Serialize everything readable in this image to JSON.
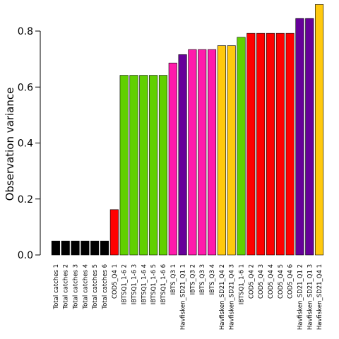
{
  "chart_data": {
    "type": "bar",
    "title": "",
    "xlabel": "",
    "ylabel": "Observation variance",
    "ylim": [
      0,
      0.9
    ],
    "yticks": [
      0.0,
      0.2,
      0.4,
      0.6,
      0.8
    ],
    "ytick_labels": [
      "0.0",
      "0.2",
      "0.4",
      "0.6",
      "0.8"
    ],
    "grid": false,
    "legend": "none",
    "bar_edge_color": "#000000",
    "categories": [
      "Total catches 1",
      "Total catches 2",
      "Total catches 3",
      "Total catches 4",
      "Total catches 5",
      "Total catches 6",
      "COD5_Q4 1",
      "IBTSQ1_1-6 2",
      "IBTSQ1_1-6 3",
      "IBTSQ1_1-6 4",
      "IBTSQ1_1-6 5",
      "IBTSQ1_1-6 6",
      "IBTS_Q3 1",
      "Havfisken_SD21_Q1 1",
      "IBTS_Q3 2",
      "IBTS_Q3 3",
      "IBTS_Q3 4",
      "Havfisken_SD21_Q4 2",
      "Havfisken_SD21_Q4 3",
      "IBTSQ1_1-6 1",
      "COD5_Q4 2",
      "COD5_Q4 3",
      "COD5_Q4 4",
      "COD5_Q4 5",
      "COD5_Q4 6",
      "Havfisken_SD21_Q1 2",
      "Havfisken_SD21_Q1 3",
      "Havfisken_SD21_Q4 1"
    ],
    "values": [
      0.05,
      0.05,
      0.05,
      0.05,
      0.05,
      0.05,
      0.162,
      0.642,
      0.642,
      0.642,
      0.642,
      0.642,
      0.686,
      0.716,
      0.734,
      0.734,
      0.734,
      0.748,
      0.748,
      0.778,
      0.792,
      0.792,
      0.792,
      0.792,
      0.792,
      0.845,
      0.845,
      0.895
    ],
    "colors": [
      "#000000",
      "#000000",
      "#000000",
      "#000000",
      "#000000",
      "#000000",
      "#ff0000",
      "#61d000",
      "#61d000",
      "#61d000",
      "#61d000",
      "#61d000",
      "#ff1aab",
      "#660099",
      "#ff1aab",
      "#ff1aab",
      "#ff1aab",
      "#ffc90e",
      "#ffc90e",
      "#61d000",
      "#ff0000",
      "#ff0000",
      "#ff0000",
      "#ff0000",
      "#ff0000",
      "#660099",
      "#660099",
      "#ffc90e"
    ]
  }
}
